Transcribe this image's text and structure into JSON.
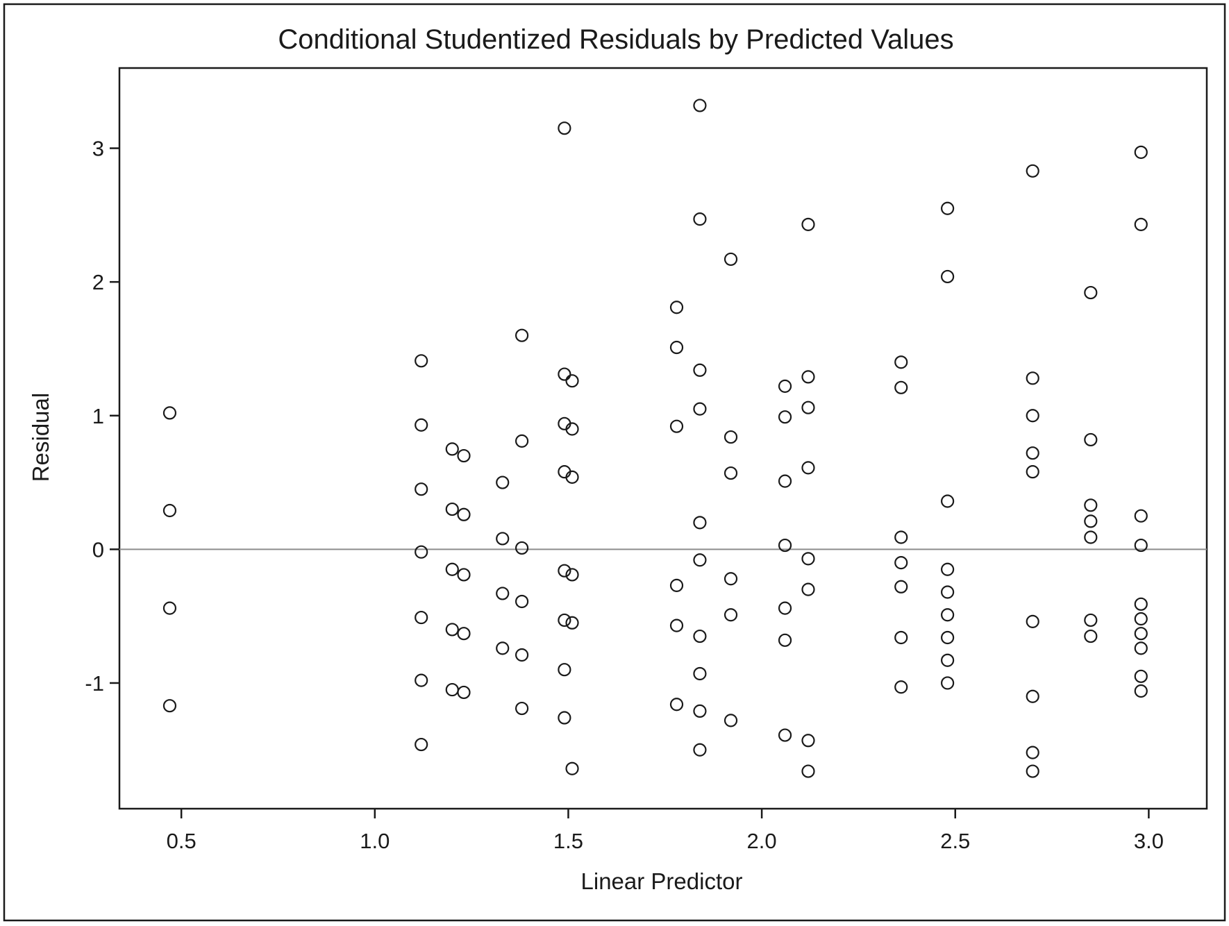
{
  "chart_data": {
    "type": "scatter",
    "title": "Conditional Studentized Residuals by Predicted Values",
    "xlabel": "Linear Predictor",
    "ylabel": "Residual",
    "xlim": [
      0.34,
      3.15
    ],
    "ylim": [
      -1.94,
      3.6
    ],
    "xticks": [
      0.5,
      1.0,
      1.5,
      2.0,
      2.5,
      3.0
    ],
    "xtick_labels": [
      "0.5",
      "1.0",
      "1.5",
      "2.0",
      "2.5",
      "3.0"
    ],
    "yticks": [
      -1,
      0,
      1,
      2,
      3
    ],
    "ytick_labels": [
      "-1",
      "0",
      "1",
      "2",
      "3"
    ],
    "reference_line_y": 0,
    "grid": false,
    "legend": "none",
    "marker": "open-circle",
    "points": [
      {
        "x": 0.47,
        "y": 1.02
      },
      {
        "x": 0.47,
        "y": 0.29
      },
      {
        "x": 0.47,
        "y": -0.44
      },
      {
        "x": 0.47,
        "y": -1.17
      },
      {
        "x": 1.12,
        "y": 1.41
      },
      {
        "x": 1.12,
        "y": 0.93
      },
      {
        "x": 1.12,
        "y": 0.45
      },
      {
        "x": 1.12,
        "y": -0.02
      },
      {
        "x": 1.12,
        "y": -0.51
      },
      {
        "x": 1.12,
        "y": -0.98
      },
      {
        "x": 1.12,
        "y": -1.46
      },
      {
        "x": 1.2,
        "y": 0.75
      },
      {
        "x": 1.2,
        "y": 0.3
      },
      {
        "x": 1.2,
        "y": -0.15
      },
      {
        "x": 1.2,
        "y": -0.6
      },
      {
        "x": 1.2,
        "y": -1.05
      },
      {
        "x": 1.23,
        "y": 0.7
      },
      {
        "x": 1.23,
        "y": 0.26
      },
      {
        "x": 1.23,
        "y": -0.19
      },
      {
        "x": 1.23,
        "y": -0.63
      },
      {
        "x": 1.23,
        "y": -1.07
      },
      {
        "x": 1.33,
        "y": 0.5
      },
      {
        "x": 1.33,
        "y": 0.08
      },
      {
        "x": 1.33,
        "y": -0.33
      },
      {
        "x": 1.33,
        "y": -0.74
      },
      {
        "x": 1.38,
        "y": 1.6
      },
      {
        "x": 1.38,
        "y": 0.81
      },
      {
        "x": 1.38,
        "y": 0.01
      },
      {
        "x": 1.38,
        "y": -0.39
      },
      {
        "x": 1.38,
        "y": -0.79
      },
      {
        "x": 1.38,
        "y": -1.19
      },
      {
        "x": 1.49,
        "y": 3.15
      },
      {
        "x": 1.49,
        "y": 1.31
      },
      {
        "x": 1.49,
        "y": 0.94
      },
      {
        "x": 1.49,
        "y": 0.58
      },
      {
        "x": 1.49,
        "y": -0.16
      },
      {
        "x": 1.49,
        "y": -0.53
      },
      {
        "x": 1.49,
        "y": -0.9
      },
      {
        "x": 1.49,
        "y": -1.26
      },
      {
        "x": 1.51,
        "y": 1.26
      },
      {
        "x": 1.51,
        "y": 0.9
      },
      {
        "x": 1.51,
        "y": 0.54
      },
      {
        "x": 1.51,
        "y": -0.19
      },
      {
        "x": 1.51,
        "y": -0.55
      },
      {
        "x": 1.51,
        "y": -1.64
      },
      {
        "x": 1.78,
        "y": 1.81
      },
      {
        "x": 1.78,
        "y": 1.51
      },
      {
        "x": 1.78,
        "y": 0.92
      },
      {
        "x": 1.78,
        "y": -0.27
      },
      {
        "x": 1.78,
        "y": -0.57
      },
      {
        "x": 1.78,
        "y": -1.16
      },
      {
        "x": 1.84,
        "y": 3.32
      },
      {
        "x": 1.84,
        "y": 2.47
      },
      {
        "x": 1.84,
        "y": 1.34
      },
      {
        "x": 1.84,
        "y": 1.05
      },
      {
        "x": 1.84,
        "y": 0.2
      },
      {
        "x": 1.84,
        "y": -0.08
      },
      {
        "x": 1.84,
        "y": -0.65
      },
      {
        "x": 1.84,
        "y": -0.93
      },
      {
        "x": 1.84,
        "y": -1.21
      },
      {
        "x": 1.84,
        "y": -1.5
      },
      {
        "x": 1.92,
        "y": 2.17
      },
      {
        "x": 1.92,
        "y": 0.84
      },
      {
        "x": 1.92,
        "y": 0.57
      },
      {
        "x": 1.92,
        "y": -0.22
      },
      {
        "x": 1.92,
        "y": -0.49
      },
      {
        "x": 1.92,
        "y": -1.28
      },
      {
        "x": 2.06,
        "y": 1.22
      },
      {
        "x": 2.06,
        "y": 0.99
      },
      {
        "x": 2.06,
        "y": 0.51
      },
      {
        "x": 2.06,
        "y": 0.03
      },
      {
        "x": 2.06,
        "y": -0.44
      },
      {
        "x": 2.06,
        "y": -0.68
      },
      {
        "x": 2.06,
        "y": -1.39
      },
      {
        "x": 2.12,
        "y": 2.43
      },
      {
        "x": 2.12,
        "y": 1.29
      },
      {
        "x": 2.12,
        "y": 1.06
      },
      {
        "x": 2.12,
        "y": 0.61
      },
      {
        "x": 2.12,
        "y": -0.07
      },
      {
        "x": 2.12,
        "y": -0.3
      },
      {
        "x": 2.12,
        "y": -1.43
      },
      {
        "x": 2.12,
        "y": -1.66
      },
      {
        "x": 2.36,
        "y": 1.4
      },
      {
        "x": 2.36,
        "y": 1.21
      },
      {
        "x": 2.36,
        "y": 0.09
      },
      {
        "x": 2.36,
        "y": -0.1
      },
      {
        "x": 2.36,
        "y": -0.28
      },
      {
        "x": 2.36,
        "y": -0.66
      },
      {
        "x": 2.36,
        "y": -1.03
      },
      {
        "x": 2.48,
        "y": 2.55
      },
      {
        "x": 2.48,
        "y": 2.04
      },
      {
        "x": 2.48,
        "y": 0.36
      },
      {
        "x": 2.48,
        "y": -0.15
      },
      {
        "x": 2.48,
        "y": -0.32
      },
      {
        "x": 2.48,
        "y": -0.49
      },
      {
        "x": 2.48,
        "y": -0.66
      },
      {
        "x": 2.48,
        "y": -0.83
      },
      {
        "x": 2.48,
        "y": -1.0
      },
      {
        "x": 2.7,
        "y": 2.83
      },
      {
        "x": 2.7,
        "y": 1.28
      },
      {
        "x": 2.7,
        "y": 1.0
      },
      {
        "x": 2.7,
        "y": 0.72
      },
      {
        "x": 2.7,
        "y": 0.58
      },
      {
        "x": 2.7,
        "y": -0.54
      },
      {
        "x": 2.7,
        "y": -1.1
      },
      {
        "x": 2.7,
        "y": -1.52
      },
      {
        "x": 2.7,
        "y": -1.66
      },
      {
        "x": 2.85,
        "y": 1.92
      },
      {
        "x": 2.85,
        "y": 0.82
      },
      {
        "x": 2.85,
        "y": 0.33
      },
      {
        "x": 2.85,
        "y": 0.21
      },
      {
        "x": 2.85,
        "y": 0.09
      },
      {
        "x": 2.85,
        "y": -0.53
      },
      {
        "x": 2.85,
        "y": -0.65
      },
      {
        "x": 2.98,
        "y": 2.97
      },
      {
        "x": 2.98,
        "y": 2.43
      },
      {
        "x": 2.98,
        "y": 0.25
      },
      {
        "x": 2.98,
        "y": 0.03
      },
      {
        "x": 2.98,
        "y": -0.41
      },
      {
        "x": 2.98,
        "y": -0.52
      },
      {
        "x": 2.98,
        "y": -0.63
      },
      {
        "x": 2.98,
        "y": -0.74
      },
      {
        "x": 2.98,
        "y": -0.95
      },
      {
        "x": 2.98,
        "y": -1.06
      }
    ]
  }
}
